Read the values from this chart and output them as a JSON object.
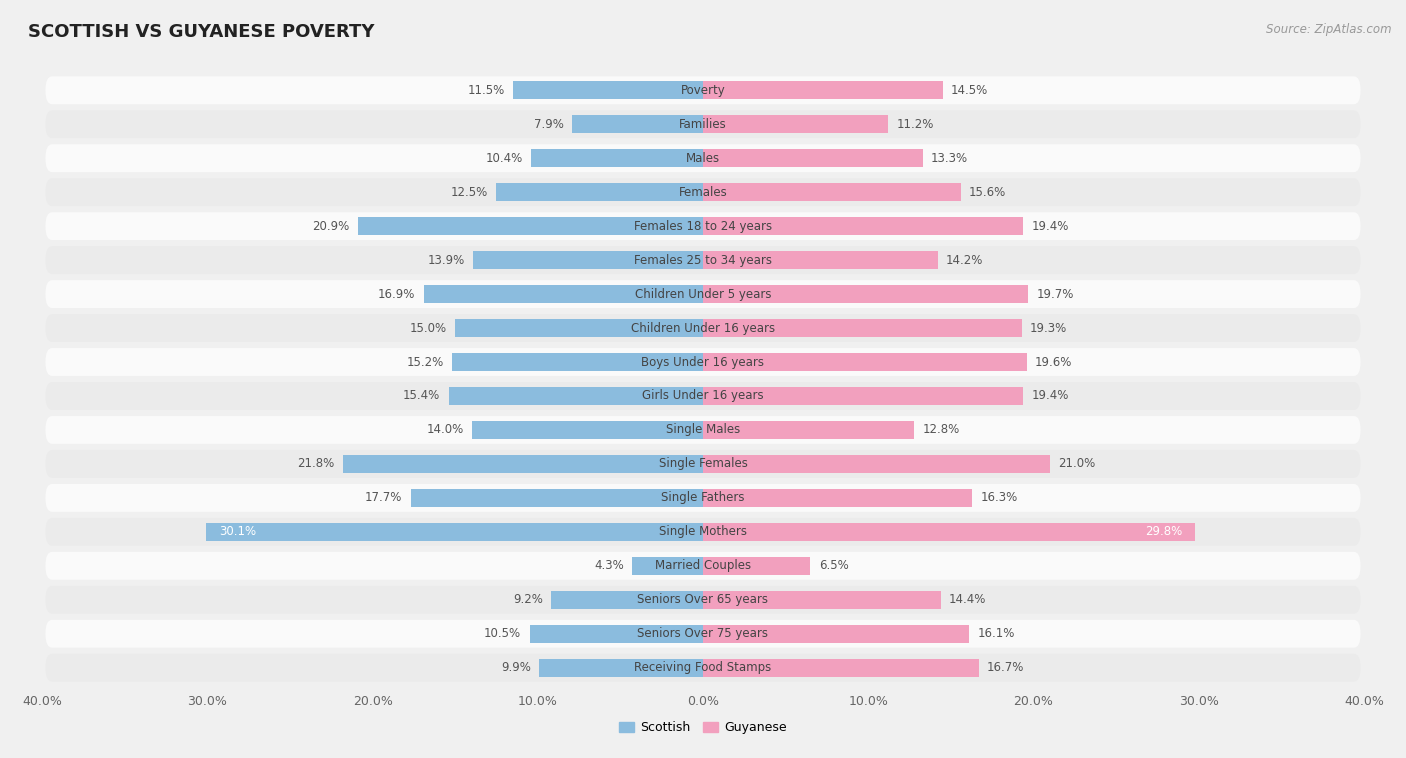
{
  "title": "SCOTTISH VS GUYANESE POVERTY",
  "source": "Source: ZipAtlas.com",
  "categories": [
    "Poverty",
    "Families",
    "Males",
    "Females",
    "Females 18 to 24 years",
    "Females 25 to 34 years",
    "Children Under 5 years",
    "Children Under 16 years",
    "Boys Under 16 years",
    "Girls Under 16 years",
    "Single Males",
    "Single Females",
    "Single Fathers",
    "Single Mothers",
    "Married Couples",
    "Seniors Over 65 years",
    "Seniors Over 75 years",
    "Receiving Food Stamps"
  ],
  "scottish": [
    11.5,
    7.9,
    10.4,
    12.5,
    20.9,
    13.9,
    16.9,
    15.0,
    15.2,
    15.4,
    14.0,
    21.8,
    17.7,
    30.1,
    4.3,
    9.2,
    10.5,
    9.9
  ],
  "guyanese": [
    14.5,
    11.2,
    13.3,
    15.6,
    19.4,
    14.2,
    19.7,
    19.3,
    19.6,
    19.4,
    12.8,
    21.0,
    16.3,
    29.8,
    6.5,
    14.4,
    16.1,
    16.7
  ],
  "scottish_color": "#8BBCDE",
  "guyanese_color": "#F2A0BE",
  "background_color": "#f0f0f0",
  "row_bg_color": "#fafafa",
  "row_alt_color": "#ebebeb",
  "xlim": 40.0,
  "bar_height": 0.52,
  "title_fontsize": 13,
  "label_fontsize": 8.5,
  "source_fontsize": 8.5,
  "value_fontsize": 8.5
}
